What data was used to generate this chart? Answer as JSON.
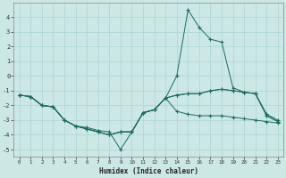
{
  "xlabel": "Humidex (Indice chaleur)",
  "background_color": "#cce8e4",
  "grid_color": "#aad4d0",
  "line_color": "#1a6b60",
  "xlim": [
    -0.5,
    23.5
  ],
  "ylim": [
    -5.5,
    5.0
  ],
  "xticks": [
    0,
    1,
    2,
    3,
    4,
    5,
    6,
    7,
    8,
    9,
    10,
    11,
    12,
    13,
    14,
    15,
    16,
    17,
    18,
    19,
    20,
    21,
    22,
    23
  ],
  "yticks": [
    -5,
    -4,
    -3,
    -2,
    -1,
    0,
    1,
    2,
    3,
    4
  ],
  "line1_x": [
    0,
    1,
    2,
    3,
    4,
    5,
    6,
    7,
    8,
    9,
    10,
    11,
    12,
    13,
    14,
    15,
    16,
    17,
    18,
    19,
    20,
    21,
    22,
    23
  ],
  "line1_y": [
    -1.3,
    -1.4,
    -2.0,
    -2.1,
    -3.0,
    -3.4,
    -3.5,
    -3.7,
    -3.8,
    -5.0,
    -3.8,
    -2.5,
    -2.3,
    -1.5,
    -1.3,
    -1.2,
    -1.2,
    -1.0,
    -0.9,
    -1.0,
    -1.1,
    -1.2,
    -2.6,
    -3.0
  ],
  "line2_x": [
    0,
    1,
    2,
    3,
    4,
    5,
    6,
    7,
    8,
    9,
    10,
    11,
    12,
    13,
    14,
    15,
    16,
    17,
    18,
    19,
    20,
    21,
    22,
    23
  ],
  "line2_y": [
    -1.3,
    -1.4,
    -2.0,
    -2.1,
    -3.0,
    -3.4,
    -3.6,
    -3.8,
    -4.0,
    -3.8,
    -3.8,
    -2.5,
    -2.3,
    -1.5,
    -1.3,
    -1.2,
    -1.2,
    -1.0,
    -0.9,
    -1.0,
    -1.1,
    -1.2,
    -2.7,
    -3.1
  ],
  "line3_x": [
    0,
    1,
    2,
    3,
    4,
    5,
    6,
    7,
    8,
    9,
    10,
    11,
    12,
    13,
    14,
    15,
    16,
    17,
    18,
    19,
    20,
    21,
    22,
    23
  ],
  "line3_y": [
    -1.3,
    -1.4,
    -2.0,
    -2.1,
    -3.0,
    -3.4,
    -3.6,
    -3.8,
    -4.0,
    -3.8,
    -3.8,
    -2.5,
    -2.3,
    -1.5,
    -2.4,
    -2.6,
    -2.7,
    -2.7,
    -2.7,
    -2.8,
    -2.9,
    -3.0,
    -3.1,
    -3.2
  ],
  "line4_x": [
    0,
    1,
    2,
    3,
    4,
    5,
    6,
    7,
    8,
    9,
    10,
    11,
    12,
    13,
    14,
    15,
    16,
    17,
    18,
    19,
    20,
    21,
    22,
    23
  ],
  "line4_y": [
    -1.3,
    -1.4,
    -2.0,
    -2.1,
    -3.0,
    -3.4,
    -3.6,
    -3.8,
    -4.0,
    -3.8,
    -3.8,
    -2.5,
    -2.3,
    -1.5,
    0.0,
    4.5,
    3.3,
    2.5,
    2.3,
    -0.8,
    -1.1,
    -1.2,
    -2.7,
    -3.1
  ]
}
